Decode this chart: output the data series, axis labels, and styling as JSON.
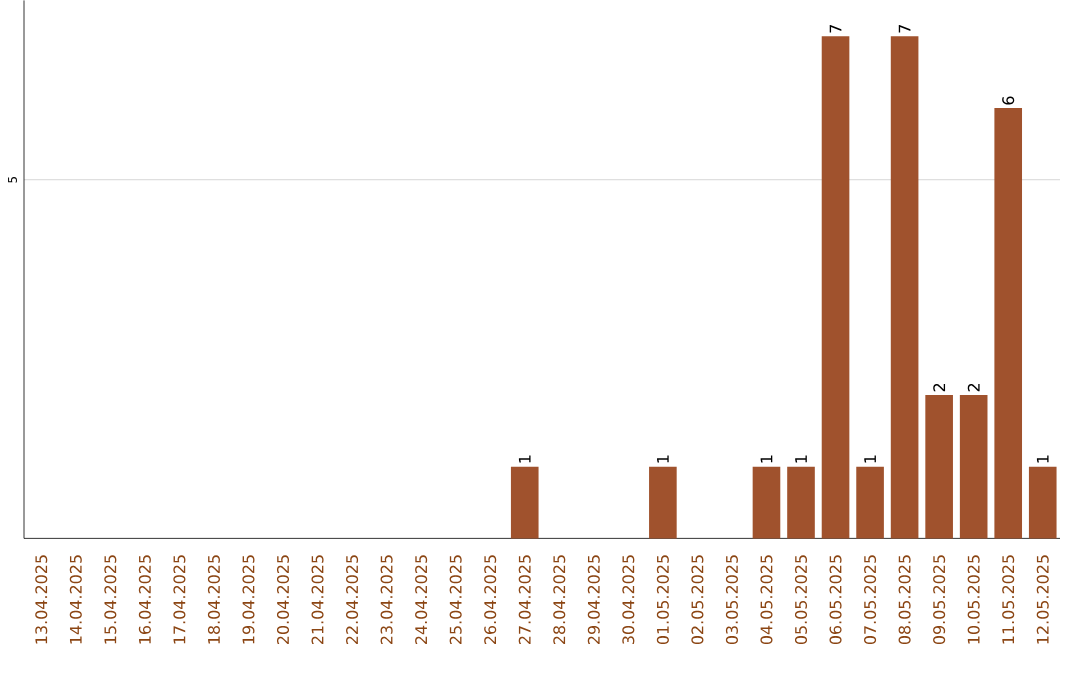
{
  "chart_data": {
    "type": "bar",
    "categories": [
      "13.04.2025",
      "14.04.2025",
      "15.04.2025",
      "16.04.2025",
      "17.04.2025",
      "18.04.2025",
      "19.04.2025",
      "20.04.2025",
      "21.04.2025",
      "22.04.2025",
      "23.04.2025",
      "24.04.2025",
      "25.04.2025",
      "26.04.2025",
      "27.04.2025",
      "28.04.2025",
      "29.04.2025",
      "30.04.2025",
      "01.05.2025",
      "02.05.2025",
      "03.05.2025",
      "04.05.2025",
      "05.05.2025",
      "06.05.2025",
      "07.05.2025",
      "08.05.2025",
      "09.05.2025",
      "10.05.2025",
      "11.05.2025",
      "12.05.2025"
    ],
    "values": [
      null,
      null,
      null,
      null,
      null,
      null,
      null,
      null,
      null,
      null,
      null,
      null,
      null,
      null,
      1,
      null,
      null,
      null,
      1,
      null,
      null,
      1,
      1,
      7,
      1,
      7,
      2,
      2,
      6,
      1
    ],
    "color": "#a0522d",
    "ylim": [
      0,
      7.5
    ],
    "yticks": [
      5
    ],
    "grid": "y",
    "data_labels": true
  }
}
